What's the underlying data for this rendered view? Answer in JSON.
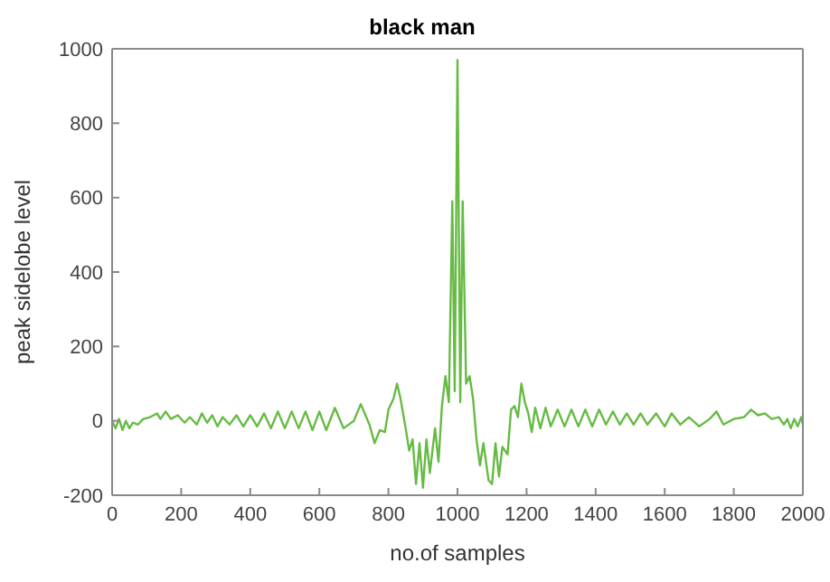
{
  "chart_data": {
    "type": "line",
    "title": "black man",
    "xlabel": "no.of samples",
    "ylabel": "peak sidelobe level",
    "xlim": [
      0,
      2000
    ],
    "xticks": [
      0,
      200,
      400,
      600,
      800,
      1000,
      1200,
      1400,
      1600,
      1800,
      2000
    ],
    "ylim": [
      -200,
      1000
    ],
    "yticks": [
      -200,
      0,
      200,
      400,
      600,
      800,
      1000
    ],
    "marker": "none",
    "line_style": "solid",
    "series": [
      {
        "color": "#66bb44",
        "x": [
          0,
          10,
          20,
          30,
          40,
          50,
          60,
          75,
          90,
          110,
          130,
          140,
          155,
          170,
          190,
          210,
          225,
          245,
          260,
          275,
          290,
          305,
          320,
          340,
          360,
          380,
          400,
          420,
          440,
          460,
          480,
          500,
          520,
          540,
          560,
          580,
          600,
          620,
          645,
          670,
          700,
          720,
          745,
          760,
          775,
          790,
          800,
          815,
          825,
          835,
          850,
          860,
          870,
          880,
          890,
          900,
          910,
          920,
          935,
          945,
          955,
          965,
          975,
          985,
          992,
          1000,
          1008,
          1015,
          1025,
          1035,
          1045,
          1055,
          1065,
          1075,
          1090,
          1100,
          1110,
          1120,
          1130,
          1145,
          1155,
          1165,
          1175,
          1185,
          1195,
          1205,
          1215,
          1225,
          1240,
          1255,
          1270,
          1290,
          1310,
          1330,
          1350,
          1370,
          1390,
          1410,
          1430,
          1450,
          1470,
          1490,
          1510,
          1530,
          1550,
          1575,
          1600,
          1620,
          1645,
          1670,
          1700,
          1730,
          1750,
          1770,
          1800,
          1830,
          1850,
          1870,
          1890,
          1910,
          1930,
          1945,
          1955,
          1965,
          1975,
          1985,
          1995,
          2000
        ],
        "values": [
          0,
          -20,
          5,
          -25,
          0,
          -20,
          -5,
          -10,
          5,
          10,
          20,
          5,
          25,
          5,
          15,
          -5,
          10,
          -10,
          20,
          -5,
          15,
          -15,
          10,
          -10,
          15,
          -15,
          15,
          -15,
          20,
          -20,
          25,
          -20,
          25,
          -20,
          25,
          -25,
          25,
          -25,
          35,
          -20,
          0,
          45,
          -10,
          -60,
          -25,
          -30,
          30,
          60,
          100,
          60,
          -20,
          -80,
          -50,
          -170,
          -60,
          -180,
          -50,
          -140,
          -20,
          -110,
          40,
          120,
          50,
          590,
          80,
          970,
          50,
          590,
          100,
          120,
          60,
          -50,
          -120,
          -60,
          -160,
          -170,
          -60,
          -150,
          -70,
          -90,
          30,
          40,
          10,
          100,
          50,
          20,
          -30,
          35,
          -20,
          35,
          -15,
          30,
          -15,
          30,
          -15,
          30,
          -15,
          30,
          -10,
          25,
          -10,
          20,
          -10,
          20,
          -10,
          20,
          -15,
          20,
          -10,
          10,
          -15,
          5,
          25,
          -10,
          5,
          10,
          30,
          15,
          20,
          5,
          10,
          -10,
          5,
          -20,
          5,
          -15,
          10,
          -10
        ]
      }
    ]
  }
}
